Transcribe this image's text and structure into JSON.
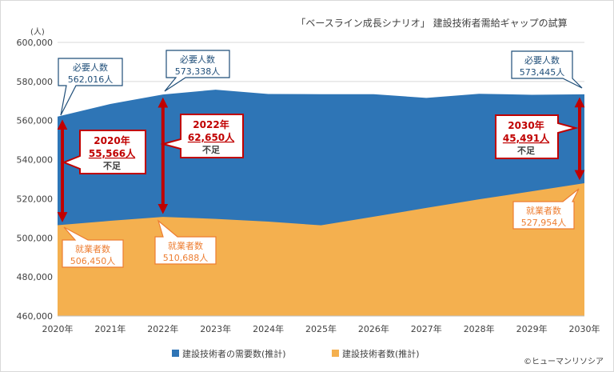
{
  "chart_data": {
    "type": "area",
    "title": "「ベースライン成長シナリオ」 建設技術者需給ギャップの試算",
    "ylabel": "(人)",
    "ylim": [
      460000,
      600000
    ],
    "yticks": [
      460000,
      480000,
      500000,
      520000,
      540000,
      560000,
      580000,
      600000
    ],
    "ytick_labels": [
      "460,000",
      "480,000",
      "500,000",
      "520,000",
      "540,000",
      "560,000",
      "580,000",
      "600,000"
    ],
    "categories": [
      "2020年",
      "2021年",
      "2022年",
      "2023年",
      "2024年",
      "2025年",
      "2026年",
      "2027年",
      "2028年",
      "2029年",
      "2030年"
    ],
    "series": [
      {
        "name": "建設技術者の需要数(推計)",
        "color": "#2E75B6",
        "values": [
          562016,
          568500,
          573338,
          575800,
          573600,
          573500,
          573500,
          571600,
          573700,
          573200,
          573445
        ]
      },
      {
        "name": "建設技術者数(推計)",
        "color": "#F4B04F",
        "values": [
          506450,
          508700,
          510688,
          509700,
          508300,
          506400,
          510800,
          515300,
          519700,
          523800,
          527954
        ]
      }
    ],
    "legend_position": "bottom",
    "callouts": {
      "demand_2020": {
        "line1": "必要人数",
        "line2": "562,016人"
      },
      "demand_2022": {
        "line1": "必要人数",
        "line2": "573,338人"
      },
      "demand_2030": {
        "line1": "必要人数",
        "line2": "573,445人"
      },
      "supply_2020": {
        "line1": "就業者数",
        "line2": "506,450人"
      },
      "supply_2022": {
        "line1": "就業者数",
        "line2": "510,688人"
      },
      "supply_2030": {
        "line1": "就業者数",
        "line2": "527,954人"
      },
      "gap_2020": {
        "year": "2020年",
        "value": "55,566人",
        "suffix": "不足"
      },
      "gap_2022": {
        "year": "2022年",
        "value": "62,650人",
        "suffix": "不足"
      },
      "gap_2030": {
        "year": "2030年",
        "value": "45,491人",
        "suffix": "不足"
      }
    }
  },
  "copyright": "©ヒューマンリソシア"
}
